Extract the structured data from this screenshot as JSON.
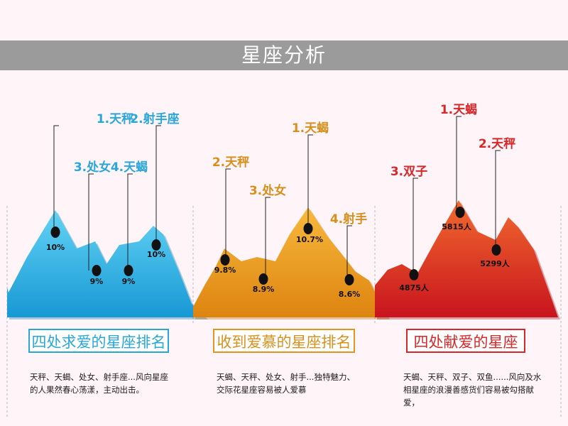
{
  "title": "星座分析",
  "chart_data": [
    {
      "type": "area",
      "title": "四处求爱的星座排名",
      "description": "天秤、天蝎、处女、射手座...风向星座的人果然春心荡漾，主动出击。",
      "color": "#29b1e6",
      "label_color": "#2aa7d8",
      "points": [
        {
          "rank_label": "1.天秤",
          "value_label": "10%",
          "value": 10
        },
        {
          "rank_label": "3.处女",
          "value_label": "9%",
          "value": 9
        },
        {
          "rank_label": "4.天蝎",
          "value_label": "9%",
          "value": 9
        },
        {
          "rank_label": "2.射手座",
          "value_label": "10%",
          "value": 10
        }
      ]
    },
    {
      "type": "area",
      "title": "收到爱慕的星座排名",
      "description": "天蝎、天秤、处女、射手...独特魅力、交际花星座容易被人爱慕",
      "color": "#f0a021",
      "label_color": "#d7901e",
      "points": [
        {
          "rank_label": "2.天秤",
          "value_label": "9.8%",
          "value": 9.8
        },
        {
          "rank_label": "3.处女",
          "value_label": "8.9%",
          "value": 8.9
        },
        {
          "rank_label": "1.天蝎",
          "value_label": "10.7%",
          "value": 10.7
        },
        {
          "rank_label": "4.射手",
          "value_label": "8.6%",
          "value": 8.6
        }
      ]
    },
    {
      "type": "area",
      "title": "四处献爱的星座",
      "description": "天蝎、天秤、双子、双鱼......风向及水相星座的浪漫善感货们容易被勾搭献爱，",
      "color": "#e03024",
      "label_color": "#d6282a",
      "points": [
        {
          "rank_label": "3.双子",
          "value_label": "4875人",
          "value": 4875
        },
        {
          "rank_label": "1.天蝎",
          "value_label": "5815人",
          "value": 5815
        },
        {
          "rank_label": "2.天秤",
          "value_label": "5299人",
          "value": 5299
        }
      ]
    }
  ]
}
